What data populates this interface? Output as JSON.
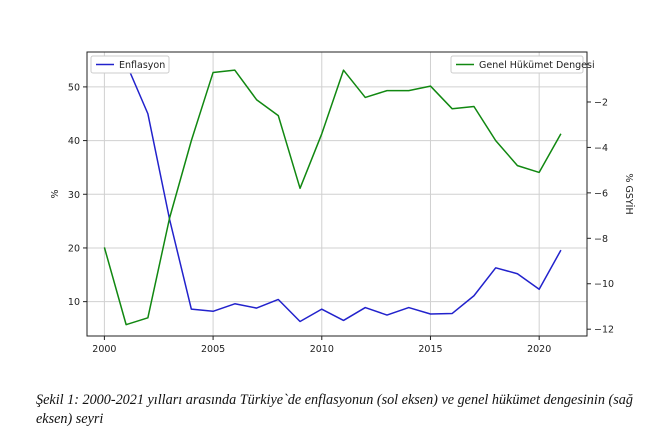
{
  "chart_data": {
    "type": "line",
    "x": [
      2000,
      2001,
      2002,
      2003,
      2004,
      2005,
      2006,
      2007,
      2008,
      2009,
      2010,
      2011,
      2012,
      2013,
      2014,
      2015,
      2016,
      2017,
      2018,
      2019,
      2020,
      2021
    ],
    "series": [
      {
        "name": "Enflasyon",
        "axis": "left",
        "color": "#2222cc",
        "values": [
          null,
          54.4,
          45.0,
          25.3,
          8.6,
          8.2,
          9.6,
          8.8,
          10.4,
          6.3,
          8.6,
          6.5,
          8.9,
          7.5,
          8.9,
          7.7,
          7.8,
          11.1,
          16.3,
          15.2,
          12.3,
          19.6
        ]
      },
      {
        "name": "Genel Hükümet Dengesi",
        "axis": "right",
        "color": "#118811",
        "values": [
          -8.4,
          -11.8,
          -11.5,
          -7.1,
          -3.7,
          -0.7,
          -0.6,
          -1.9,
          -2.6,
          -5.8,
          -3.4,
          -0.6,
          -1.8,
          -1.5,
          -1.5,
          -1.3,
          -2.3,
          -2.2,
          -3.7,
          -4.8,
          -5.1,
          -3.4
        ]
      }
    ],
    "xticks": [
      2000,
      2005,
      2010,
      2015,
      2020
    ],
    "xlim": [
      1999.2,
      2022.2
    ],
    "yticks_left": [
      10,
      20,
      30,
      40,
      50
    ],
    "ylim_left": [
      3.6,
      56.5
    ],
    "yticks_right": [
      -12,
      -10,
      -8,
      -6,
      -4,
      -2
    ],
    "ylim_right": [
      -12.3,
      0.2
    ],
    "ylabel_left": "%",
    "ylabel_right": "% GSYİH",
    "grid": true,
    "legend_left": "top-left",
    "legend_right": "top-right"
  },
  "caption": {
    "label": "Şekil 1:",
    "text": " 2000-2021 yılları arasında Türkiye`de enflasyonun (sol eksen) ve genel hükümet dengesinin (sağ eksen) seyri"
  }
}
